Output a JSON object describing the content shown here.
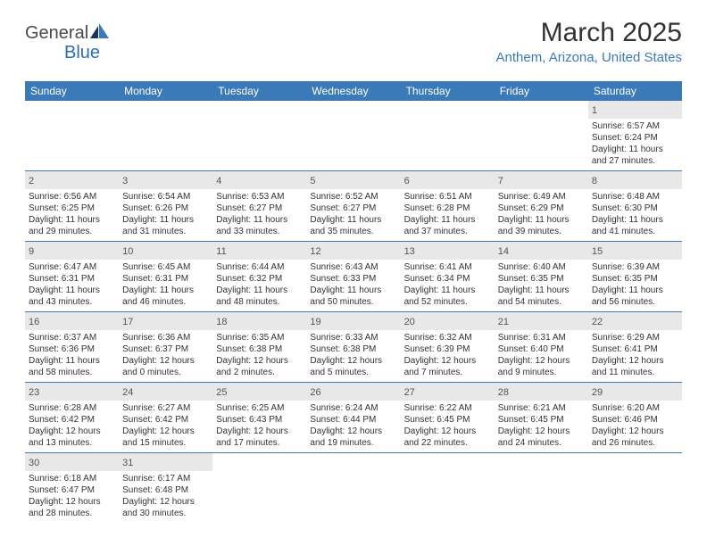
{
  "logo": {
    "part1": "General",
    "part2": "Blue"
  },
  "title": "March 2025",
  "location": "Anthem, Arizona, United States",
  "daynames": [
    "Sunday",
    "Monday",
    "Tuesday",
    "Wednesday",
    "Thursday",
    "Friday",
    "Saturday"
  ],
  "colors": {
    "headerBar": "#3b7ab8",
    "dayNumBg": "#e8e8e8",
    "text": "#333333",
    "logoBlue": "#2f6fb0"
  },
  "layout": {
    "cols": 7,
    "rows": 6,
    "firstDayOffset": 6
  },
  "days": [
    {
      "n": 1,
      "sunrise": "6:57 AM",
      "sunset": "6:24 PM",
      "daylight": "11 hours and 27 minutes."
    },
    {
      "n": 2,
      "sunrise": "6:56 AM",
      "sunset": "6:25 PM",
      "daylight": "11 hours and 29 minutes."
    },
    {
      "n": 3,
      "sunrise": "6:54 AM",
      "sunset": "6:26 PM",
      "daylight": "11 hours and 31 minutes."
    },
    {
      "n": 4,
      "sunrise": "6:53 AM",
      "sunset": "6:27 PM",
      "daylight": "11 hours and 33 minutes."
    },
    {
      "n": 5,
      "sunrise": "6:52 AM",
      "sunset": "6:27 PM",
      "daylight": "11 hours and 35 minutes."
    },
    {
      "n": 6,
      "sunrise": "6:51 AM",
      "sunset": "6:28 PM",
      "daylight": "11 hours and 37 minutes."
    },
    {
      "n": 7,
      "sunrise": "6:49 AM",
      "sunset": "6:29 PM",
      "daylight": "11 hours and 39 minutes."
    },
    {
      "n": 8,
      "sunrise": "6:48 AM",
      "sunset": "6:30 PM",
      "daylight": "11 hours and 41 minutes."
    },
    {
      "n": 9,
      "sunrise": "6:47 AM",
      "sunset": "6:31 PM",
      "daylight": "11 hours and 43 minutes."
    },
    {
      "n": 10,
      "sunrise": "6:45 AM",
      "sunset": "6:31 PM",
      "daylight": "11 hours and 46 minutes."
    },
    {
      "n": 11,
      "sunrise": "6:44 AM",
      "sunset": "6:32 PM",
      "daylight": "11 hours and 48 minutes."
    },
    {
      "n": 12,
      "sunrise": "6:43 AM",
      "sunset": "6:33 PM",
      "daylight": "11 hours and 50 minutes."
    },
    {
      "n": 13,
      "sunrise": "6:41 AM",
      "sunset": "6:34 PM",
      "daylight": "11 hours and 52 minutes."
    },
    {
      "n": 14,
      "sunrise": "6:40 AM",
      "sunset": "6:35 PM",
      "daylight": "11 hours and 54 minutes."
    },
    {
      "n": 15,
      "sunrise": "6:39 AM",
      "sunset": "6:35 PM",
      "daylight": "11 hours and 56 minutes."
    },
    {
      "n": 16,
      "sunrise": "6:37 AM",
      "sunset": "6:36 PM",
      "daylight": "11 hours and 58 minutes."
    },
    {
      "n": 17,
      "sunrise": "6:36 AM",
      "sunset": "6:37 PM",
      "daylight": "12 hours and 0 minutes."
    },
    {
      "n": 18,
      "sunrise": "6:35 AM",
      "sunset": "6:38 PM",
      "daylight": "12 hours and 2 minutes."
    },
    {
      "n": 19,
      "sunrise": "6:33 AM",
      "sunset": "6:38 PM",
      "daylight": "12 hours and 5 minutes."
    },
    {
      "n": 20,
      "sunrise": "6:32 AM",
      "sunset": "6:39 PM",
      "daylight": "12 hours and 7 minutes."
    },
    {
      "n": 21,
      "sunrise": "6:31 AM",
      "sunset": "6:40 PM",
      "daylight": "12 hours and 9 minutes."
    },
    {
      "n": 22,
      "sunrise": "6:29 AM",
      "sunset": "6:41 PM",
      "daylight": "12 hours and 11 minutes."
    },
    {
      "n": 23,
      "sunrise": "6:28 AM",
      "sunset": "6:42 PM",
      "daylight": "12 hours and 13 minutes."
    },
    {
      "n": 24,
      "sunrise": "6:27 AM",
      "sunset": "6:42 PM",
      "daylight": "12 hours and 15 minutes."
    },
    {
      "n": 25,
      "sunrise": "6:25 AM",
      "sunset": "6:43 PM",
      "daylight": "12 hours and 17 minutes."
    },
    {
      "n": 26,
      "sunrise": "6:24 AM",
      "sunset": "6:44 PM",
      "daylight": "12 hours and 19 minutes."
    },
    {
      "n": 27,
      "sunrise": "6:22 AM",
      "sunset": "6:45 PM",
      "daylight": "12 hours and 22 minutes."
    },
    {
      "n": 28,
      "sunrise": "6:21 AM",
      "sunset": "6:45 PM",
      "daylight": "12 hours and 24 minutes."
    },
    {
      "n": 29,
      "sunrise": "6:20 AM",
      "sunset": "6:46 PM",
      "daylight": "12 hours and 26 minutes."
    },
    {
      "n": 30,
      "sunrise": "6:18 AM",
      "sunset": "6:47 PM",
      "daylight": "12 hours and 28 minutes."
    },
    {
      "n": 31,
      "sunrise": "6:17 AM",
      "sunset": "6:48 PM",
      "daylight": "12 hours and 30 minutes."
    }
  ],
  "labels": {
    "sunrise": "Sunrise:",
    "sunset": "Sunset:",
    "daylight": "Daylight:"
  }
}
